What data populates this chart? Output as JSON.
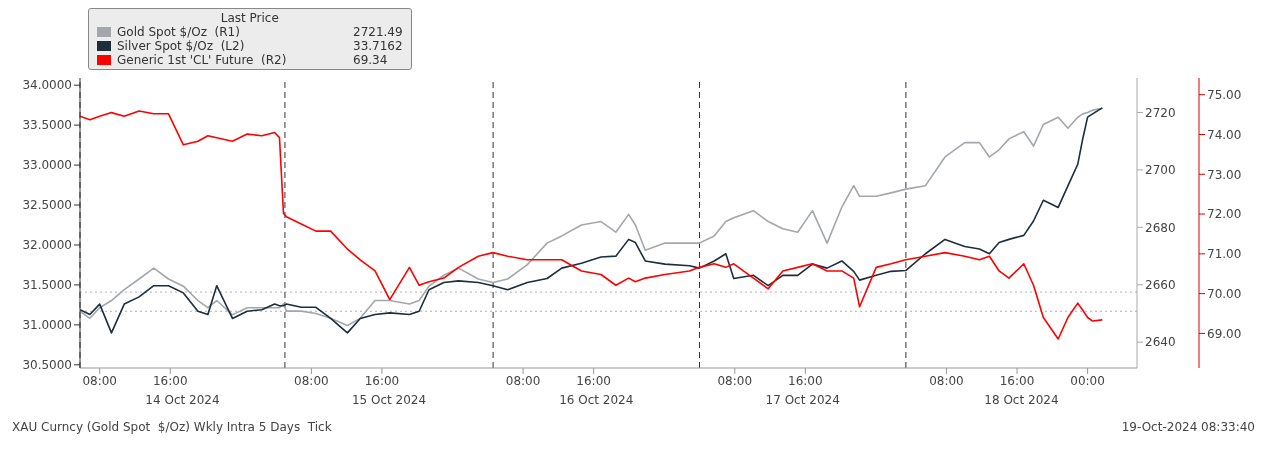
{
  "chart_data": {
    "type": "line",
    "legend_title": "Last Price",
    "legend": "top left",
    "x": [
      "2024-10-14T05:46",
      "2024-10-14T06:53",
      "2024-10-14T08:00",
      "2024-10-14T09:20",
      "2024-10-14T10:47",
      "2024-10-14T12:28",
      "2024-10-14T14:08",
      "2024-10-14T15:48",
      "2024-10-14T17:29",
      "2024-10-14T19:08",
      "2024-10-14T20:16",
      "2024-10-14T21:16",
      "2024-10-14T23:03",
      "2024-10-15T00:43",
      "2024-10-15T02:23",
      "2024-10-15T03:50",
      "2024-10-15T04:23",
      "2024-10-15T04:50",
      "2024-10-15T05:10",
      "2024-10-15T06:51",
      "2024-10-15T08:31",
      "2024-10-15T10:11",
      "2024-10-15T12:05",
      "2024-10-15T13:32",
      "2024-10-15T15:13",
      "2024-10-15T16:53",
      "2024-10-15T19:07",
      "2024-10-15T20:13",
      "2024-10-15T21:20",
      "2024-10-15T23:01",
      "2024-10-16T00:41",
      "2024-10-16T02:55",
      "2024-10-16T04:35",
      "2024-10-16T06:15",
      "2024-10-16T08:29",
      "2024-10-16T10:43",
      "2024-10-16T12:23",
      "2024-10-16T14:37",
      "2024-10-16T16:50",
      "2024-10-16T18:31",
      "2024-10-16T19:58",
      "2024-10-16T20:44",
      "2024-10-16T21:51",
      "2024-10-17T00:05",
      "2024-10-17T02:52",
      "2024-10-17T03:59",
      "2024-10-17T05:40",
      "2024-10-17T06:59",
      "2024-10-17T07:53",
      "2024-10-17T10:07",
      "2024-10-17T11:47",
      "2024-10-17T13:27",
      "2024-10-17T15:08",
      "2024-10-17T16:48",
      "2024-10-17T18:28",
      "2024-10-17T20:08",
      "2024-10-17T21:29",
      "2024-10-17T22:09",
      "2024-10-18T00:02",
      "2024-10-18T01:43",
      "2024-10-18T03:23",
      "2024-10-18T05:37",
      "2024-10-18T07:50",
      "2024-10-18T10:04",
      "2024-10-18T11:44",
      "2024-10-18T12:52",
      "2024-10-18T13:58",
      "2024-10-18T15:05",
      "2024-10-18T16:46",
      "2024-10-18T17:52",
      "2024-10-18T18:59",
      "2024-10-18T20:40",
      "2024-10-18T21:46",
      "2024-10-18T22:53",
      "2024-10-18T23:27",
      "2024-10-19T00:00",
      "2024-10-19T00:34",
      "2024-10-19T01:40"
    ],
    "series": [
      {
        "name": "Gold Spot $/Oz  (R1)",
        "color": "#a3a7ab",
        "axis": "y2",
        "values": [
          2650.8,
          2648.3,
          2652.0,
          2654.5,
          2658.3,
          2662.0,
          2665.8,
          2662.0,
          2659.5,
          2654.5,
          2652.0,
          2654.5,
          2649.5,
          2652.0,
          2652.0,
          2652.0,
          2652.0,
          2653.3,
          2650.8,
          2650.8,
          2650.0,
          2648.3,
          2645.8,
          2648.3,
          2654.5,
          2654.5,
          2653.3,
          2654.5,
          2659.5,
          2663.3,
          2665.8,
          2662.0,
          2660.8,
          2662.0,
          2667.0,
          2674.5,
          2677.0,
          2680.8,
          2682.0,
          2678.3,
          2684.5,
          2680.8,
          2672.0,
          2674.5,
          2674.5,
          2674.5,
          2677.0,
          2682.0,
          2683.3,
          2685.8,
          2682.0,
          2679.5,
          2678.3,
          2685.8,
          2674.5,
          2687.0,
          2694.5,
          2690.8,
          2690.8,
          2692.0,
          2693.3,
          2694.5,
          2704.5,
          2709.5,
          2709.5,
          2704.5,
          2707.0,
          2710.8,
          2713.3,
          2708.3,
          2715.8,
          2718.3,
          2714.5,
          2718.3,
          2719.5,
          2720.0,
          2720.8,
          2721.49
        ]
      },
      {
        "name": "Silver Spot $/Oz  (L2)",
        "color": "#1c2e3b",
        "axis": "y",
        "values": [
          31.19,
          31.13,
          31.26,
          30.9,
          31.26,
          31.35,
          31.49,
          31.49,
          31.4,
          31.17,
          31.13,
          31.49,
          31.08,
          31.17,
          31.19,
          31.26,
          31.24,
          31.24,
          31.26,
          31.22,
          31.22,
          31.08,
          30.9,
          31.08,
          31.13,
          31.15,
          31.13,
          31.17,
          31.44,
          31.53,
          31.55,
          31.53,
          31.49,
          31.44,
          31.53,
          31.58,
          31.71,
          31.77,
          31.85,
          31.86,
          32.07,
          32.03,
          31.8,
          31.76,
          31.74,
          31.71,
          31.8,
          31.89,
          31.58,
          31.62,
          31.49,
          31.62,
          31.62,
          31.76,
          31.71,
          31.8,
          31.67,
          31.56,
          31.62,
          31.67,
          31.68,
          31.89,
          32.07,
          31.98,
          31.95,
          31.89,
          32.03,
          32.07,
          32.12,
          32.3,
          32.56,
          32.47,
          32.74,
          33.01,
          33.33,
          33.6,
          33.64,
          33.7162
        ]
      },
      {
        "name": "Generic 1st 'CL' Future  (R2)",
        "color": "#ff0000",
        "axis": "y3",
        "values": [
          74.46,
          74.37,
          74.46,
          74.55,
          74.46,
          74.59,
          74.52,
          74.52,
          73.74,
          73.83,
          73.97,
          73.92,
          73.83,
          74.01,
          73.97,
          74.05,
          73.92,
          72.02,
          71.93,
          71.75,
          71.57,
          71.57,
          71.12,
          70.85,
          70.57,
          69.85,
          70.66,
          70.21,
          70.3,
          70.39,
          70.66,
          70.94,
          71.03,
          70.94,
          70.85,
          70.85,
          70.85,
          70.57,
          70.48,
          70.21,
          70.39,
          70.3,
          70.39,
          70.48,
          70.57,
          70.66,
          70.75,
          70.66,
          70.75,
          70.39,
          70.12,
          70.57,
          70.66,
          70.75,
          70.57,
          70.57,
          70.39,
          69.67,
          70.66,
          70.75,
          70.85,
          70.94,
          71.03,
          70.94,
          70.85,
          70.94,
          70.57,
          70.39,
          70.75,
          70.21,
          69.4,
          68.86,
          69.4,
          69.76,
          69.58,
          69.4,
          69.31,
          69.34
        ]
      }
    ],
    "xlim": [
      "2024-10-14T05:46",
      "2024-10-19T05:36"
    ],
    "xticks": [
      {
        "value": "2024-10-14T08:00",
        "label": "08:00"
      },
      {
        "value": "2024-10-14T16:00",
        "label": "16:00"
      },
      {
        "value": "2024-10-15T08:00",
        "label": "08:00"
      },
      {
        "value": "2024-10-15T16:00",
        "label": "16:00"
      },
      {
        "value": "2024-10-16T08:00",
        "label": "08:00"
      },
      {
        "value": "2024-10-16T16:00",
        "label": "16:00"
      },
      {
        "value": "2024-10-17T08:00",
        "label": "08:00"
      },
      {
        "value": "2024-10-17T16:00",
        "label": "16:00"
      },
      {
        "value": "2024-10-18T08:00",
        "label": "08:00"
      },
      {
        "value": "2024-10-18T16:00",
        "label": "16:00"
      },
      {
        "value": "2024-10-19T00:00",
        "label": "00:00"
      }
    ],
    "ylim": [
      30.46,
      34.09
    ],
    "yticks": [
      {
        "value": 30.5,
        "label": "30.5000"
      },
      {
        "value": 31,
        "label": "31.0000"
      },
      {
        "value": 31.5,
        "label": "31.5000"
      },
      {
        "value": 32,
        "label": "32.0000"
      },
      {
        "value": 32.5,
        "label": "32.5000"
      },
      {
        "value": 33,
        "label": "33.0000"
      },
      {
        "value": 33.5,
        "label": "33.5000"
      },
      {
        "value": 34,
        "label": "34.0000"
      }
    ],
    "y2lim": [
      2631,
      2732
    ],
    "y2ticks": [
      2640,
      2660,
      2680,
      2700,
      2720
    ],
    "y3lim": [
      68.13,
      75.42
    ],
    "y3ticks": [
      {
        "value": 69,
        "label": "69.00"
      },
      {
        "value": 70,
        "label": "70.00"
      },
      {
        "value": 71,
        "label": "71.00"
      },
      {
        "value": 72,
        "label": "72.00"
      },
      {
        "value": 73,
        "label": "73.00"
      },
      {
        "value": 74,
        "label": "74.00"
      },
      {
        "value": 75,
        "label": "75.00"
      }
    ],
    "ref_lines": [
      {
        "axis": "x",
        "value": "2024-10-14T05:46",
        "line_style": "dashed",
        "color": "#333333"
      },
      {
        "axis": "x",
        "value": "2024-10-15T05:00",
        "line_style": "dashed",
        "color": "#333333"
      },
      {
        "axis": "x",
        "value": "2024-10-16T04:36",
        "line_style": "dashed",
        "color": "#333333"
      },
      {
        "axis": "x",
        "value": "2024-10-17T04:00",
        "line_style": "dashed",
        "color": "#333333"
      },
      {
        "axis": "x",
        "value": "2024-10-18T03:24",
        "line_style": "dashed",
        "color": "#333333"
      },
      {
        "axis": "y",
        "value": 31.41,
        "line_style": "dotted",
        "color": "#b0b0b0"
      },
      {
        "axis": "y",
        "value": 31.17,
        "line_style": "dotted",
        "color": "#b0b0b0"
      }
    ],
    "annotations": [
      "2721.49",
      "33.7162",
      "69.34",
      "14 Oct 2024",
      "15 Oct 2024",
      "16 Oct 2024",
      "17 Oct 2024",
      "18 Oct 2024",
      "XAU Curncy (Gold Spot  $/Oz) Wkly Intra 5 Days  Tick",
      "19-Oct-2024 08:33:40"
    ]
  }
}
